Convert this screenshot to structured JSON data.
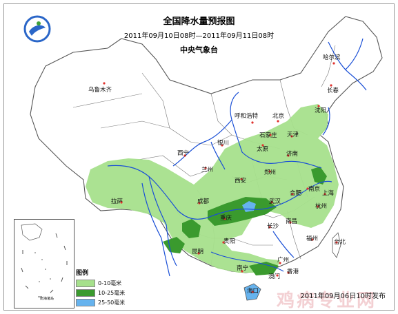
{
  "header": {
    "title": "全国降水量预报图",
    "period": "2011年09月10日08时—2011年09月11日08时",
    "agency": "中央气象台"
  },
  "cities": [
    {
      "name": "乌鲁木齐"
    },
    {
      "name": "哈尔滨"
    },
    {
      "name": "长春"
    },
    {
      "name": "沈阳"
    },
    {
      "name": "呼和浩特"
    },
    {
      "name": "北京"
    },
    {
      "name": "天津"
    },
    {
      "name": "石家庄"
    },
    {
      "name": "太原"
    },
    {
      "name": "银川"
    },
    {
      "name": "西宁"
    },
    {
      "name": "兰州"
    },
    {
      "name": "济南"
    },
    {
      "name": "郑州"
    },
    {
      "name": "西安"
    },
    {
      "name": "拉萨"
    },
    {
      "name": "成都"
    },
    {
      "name": "重庆"
    },
    {
      "name": "武汉"
    },
    {
      "name": "合肥"
    },
    {
      "name": "南京"
    },
    {
      "name": "上海"
    },
    {
      "name": "杭州"
    },
    {
      "name": "长沙"
    },
    {
      "name": "南昌"
    },
    {
      "name": "福州"
    },
    {
      "name": "贵阳"
    },
    {
      "name": "昆明"
    },
    {
      "name": "南宁"
    },
    {
      "name": "广州"
    },
    {
      "name": "香港"
    },
    {
      "name": "澳门"
    },
    {
      "name": "海口"
    },
    {
      "name": "台北"
    }
  ],
  "legend": {
    "title": "图例",
    "items": [
      {
        "label": "0-10毫米",
        "color": "#a6e08c"
      },
      {
        "label": "10-25毫米",
        "color": "#3a9a2e"
      },
      {
        "label": "25-50毫米",
        "color": "#66b3ee"
      }
    ]
  },
  "inset": {
    "label": "南海诸岛"
  },
  "issued": "2011年09月06日10时发布",
  "watermark": "鸡病专业网",
  "colors": {
    "light_rain": "#a6e08c",
    "moderate_rain": "#3a9a2e",
    "heavy_rain": "#66b3ee",
    "river": "#1a4fd6",
    "border": "#555555"
  }
}
